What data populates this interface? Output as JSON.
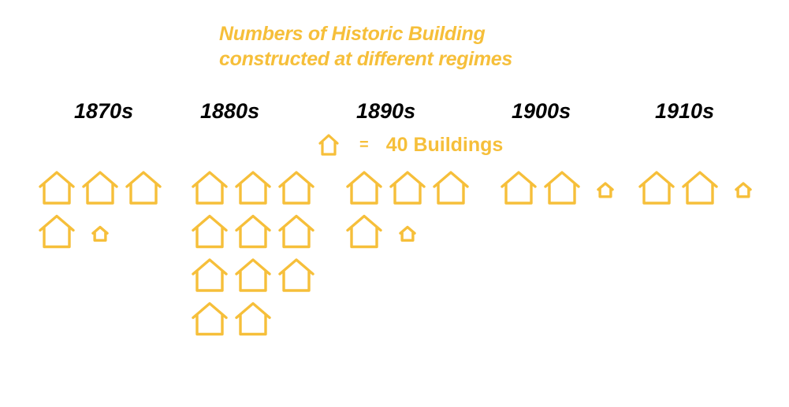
{
  "chart_data": {
    "type": "pictograph",
    "title": "Numbers of  Historic Building\nconstructed at different regimes",
    "title_lines": [
      "Numbers of  Historic Building",
      "constructed at different regimes"
    ],
    "unit_label": "40 Buildings",
    "unit_value": 40,
    "legend_symbol": "=",
    "icon": "house-icon",
    "categories": [
      "1870s",
      "1880s",
      "1890s",
      "1900s",
      "1910s"
    ],
    "icon_counts": [
      4.5,
      11,
      4.5,
      2.5,
      2.5
    ],
    "values": [
      180,
      440,
      180,
      100,
      100
    ],
    "color": "#F6BF3A"
  }
}
